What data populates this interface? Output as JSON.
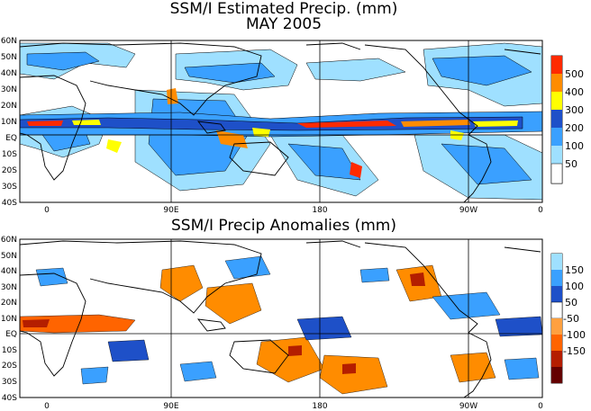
{
  "top_panel": {
    "title_line1": "SSM/I Estimated Precip. (mm)",
    "title_line2": "MAY 2005",
    "lat_ticks": [
      "60N",
      "50N",
      "40N",
      "30N",
      "20N",
      "10N",
      "EQ",
      "10S",
      "20S",
      "30S",
      "40S"
    ],
    "lon_ticks": [
      "0",
      "90E",
      "180",
      "90W",
      "0"
    ],
    "colorbar": {
      "labels": [
        "500",
        "400",
        "300",
        "200",
        "100",
        "50"
      ],
      "colors": [
        "#ff2a00",
        "#ff8c00",
        "#ffff00",
        "#1e50c8",
        "#3aa0ff",
        "#9fe0ff",
        "#ffffff"
      ]
    }
  },
  "bottom_panel": {
    "title": "SSM/I Precip Anomalies (mm)",
    "lat_ticks": [
      "60N",
      "50N",
      "40N",
      "30N",
      "20N",
      "10N",
      "EQ",
      "10S",
      "20S",
      "30S",
      "40S"
    ],
    "lon_ticks": [
      "0",
      "90E",
      "180",
      "90W",
      "0"
    ],
    "colorbar": {
      "labels": [
        "150",
        "100",
        "50",
        "-50",
        "-100",
        "-150"
      ],
      "colors": [
        "#9fe0ff",
        "#3aa0ff",
        "#1e50c8",
        "#ffffff",
        "#ffa040",
        "#ff6400",
        "#b41e00",
        "#640000"
      ]
    }
  }
}
